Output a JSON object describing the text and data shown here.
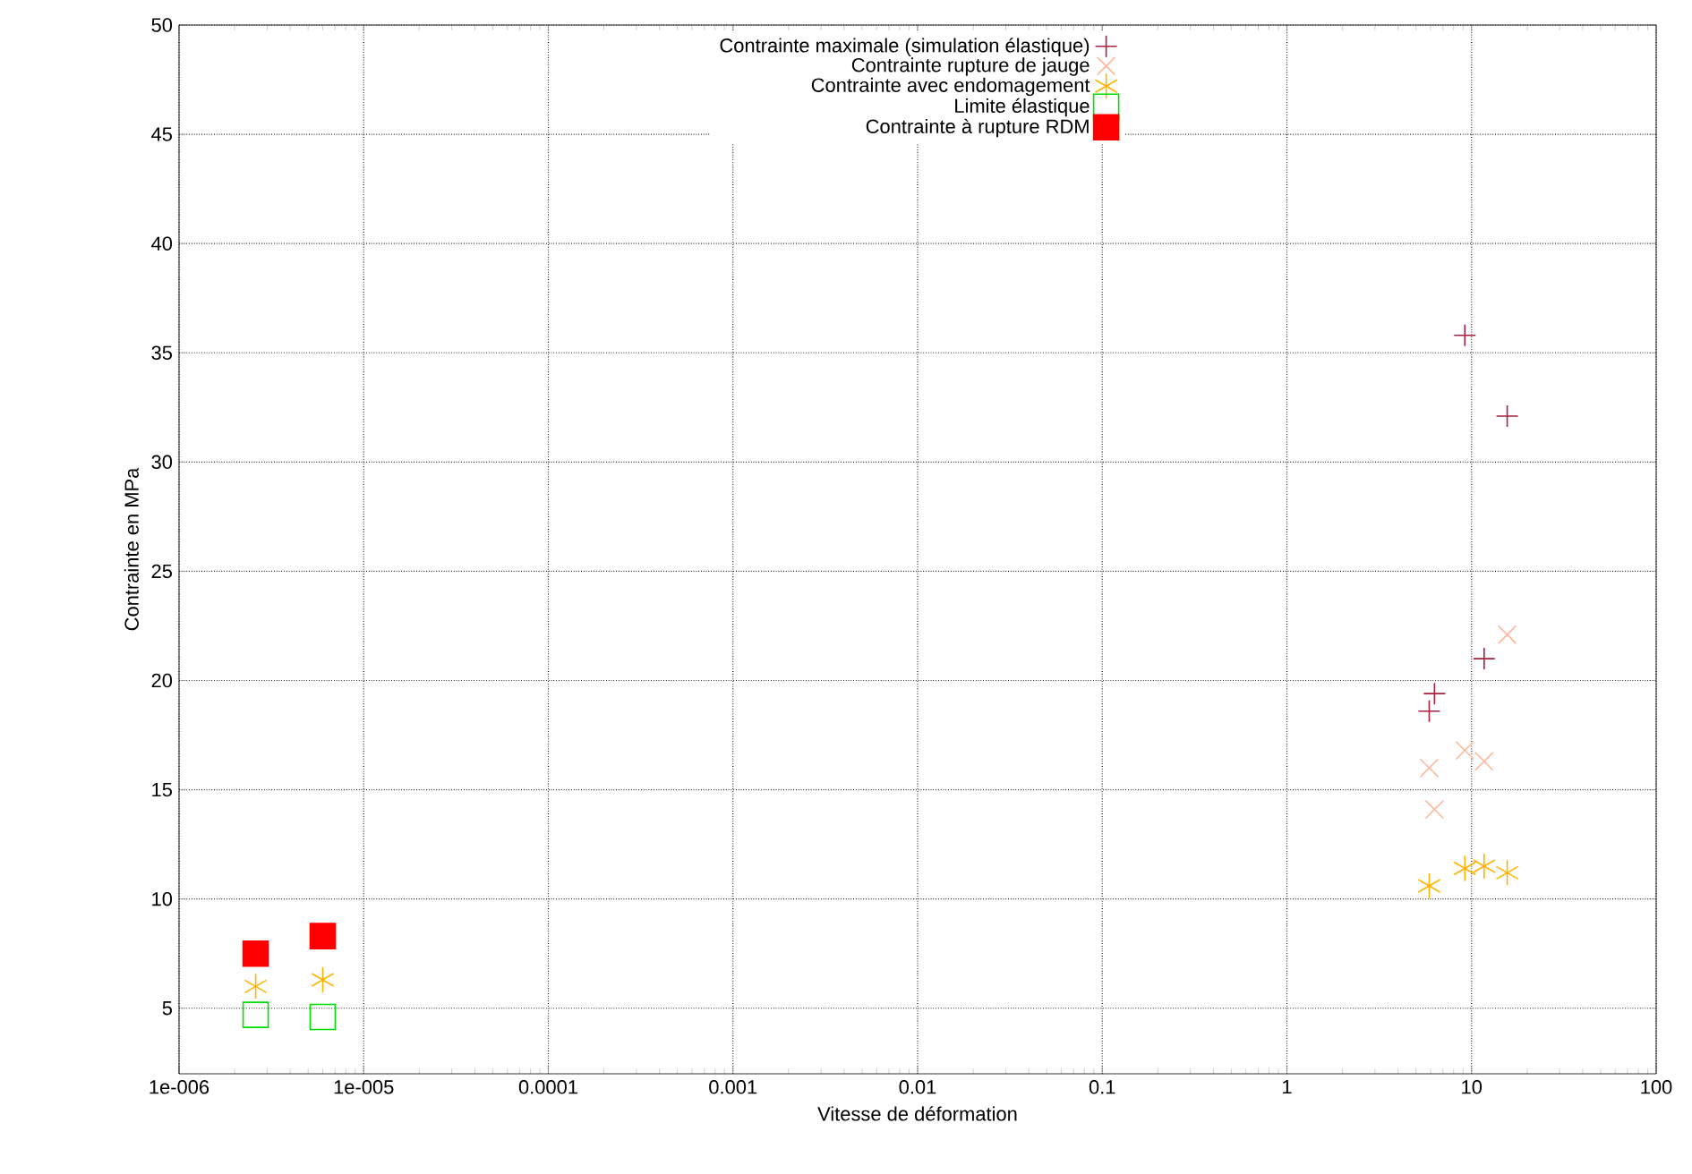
{
  "chart_data": {
    "type": "scatter",
    "xlabel": "Vitesse de déformation",
    "ylabel": "Contrainte en MPa",
    "log": "x",
    "grid": true,
    "legend": "top",
    "xlim": [
      1e-06,
      100
    ],
    "ylim": [
      2,
      50
    ],
    "xticks": [
      {
        "value": 1e-06,
        "label": "1e-006"
      },
      {
        "value": 1e-05,
        "label": "1e-005"
      },
      {
        "value": 0.0001,
        "label": "0.0001"
      },
      {
        "value": 0.001,
        "label": "0.001"
      },
      {
        "value": 0.01,
        "label": "0.01"
      },
      {
        "value": 0.1,
        "label": "0.1"
      },
      {
        "value": 1,
        "label": "1"
      },
      {
        "value": 10,
        "label": "10"
      },
      {
        "value": 100,
        "label": "100"
      }
    ],
    "yticks": [
      5,
      10,
      15,
      20,
      25,
      30,
      35,
      40,
      45,
      50
    ],
    "series": [
      {
        "name": "Contrainte maximale (simulation élastique)",
        "color": "#a8203f",
        "x": [
          9.2,
          15.6,
          11.7,
          6.3,
          5.9
        ],
        "values": [
          35.8,
          32.1,
          21.0,
          19.4,
          18.6
        ]
      },
      {
        "name": "Contrainte rupture de jauge",
        "color": "#ffb89a",
        "x": [
          15.6,
          5.9,
          9.2,
          11.7,
          6.3
        ],
        "values": [
          22.1,
          16.0,
          16.8,
          16.3,
          14.1
        ]
      },
      {
        "name": "Contrainte avec endomagement",
        "color": "#ffb400",
        "x": [
          5.9,
          9.2,
          11.7,
          15.6,
          2.6e-06,
          6e-06
        ],
        "values": [
          10.6,
          11.4,
          11.5,
          11.2,
          6.0,
          6.3
        ]
      },
      {
        "name": "Limite élastique",
        "color": "#00dd00",
        "x": [
          2.6e-06,
          6e-06
        ],
        "values": [
          4.7,
          4.6
        ]
      },
      {
        "name": "Contrainte à rupture RDM",
        "color": "#ff0000",
        "x": [
          2.6e-06,
          6e-06
        ],
        "values": [
          7.5,
          8.3
        ]
      }
    ]
  }
}
